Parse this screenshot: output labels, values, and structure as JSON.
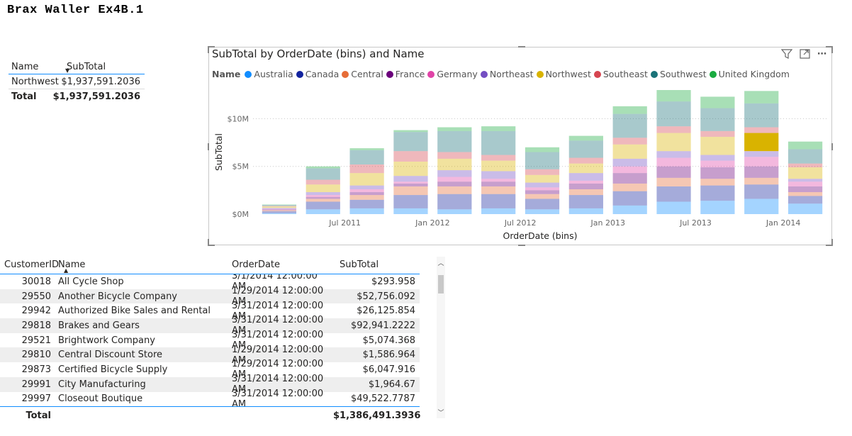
{
  "page": {
    "title": "Brax Waller Ex4B.1"
  },
  "small_table": {
    "headers": [
      "Name",
      "SubTotal"
    ],
    "rows": [
      {
        "name": "Northwest",
        "subtotal": "$1,937,591.2036"
      }
    ],
    "total": {
      "label": "Total",
      "value": "$1,937,591.2036"
    }
  },
  "chart": {
    "title": "SubTotal by OrderDate (bins) and Name",
    "legend_title": "Name",
    "icons": [
      "filter-icon",
      "focus-mode-icon",
      "more-options-icon"
    ]
  },
  "chart_data": {
    "type": "bar",
    "stacked": true,
    "title": "SubTotal by OrderDate (bins) and Name",
    "xlabel": "OrderDate (bins)",
    "ylabel": "SubTotal",
    "ylim": [
      0,
      13000000
    ],
    "yticks": [
      {
        "value": 0,
        "label": "$0M"
      },
      {
        "value": 5000000,
        "label": "$5M"
      },
      {
        "value": 10000000,
        "label": "$10M"
      }
    ],
    "x_tick_labels": [
      {
        "index": 1,
        "label": "Jul 2011"
      },
      {
        "index": 3,
        "label": "Jan 2012"
      },
      {
        "index": 5,
        "label": "Jul 2012"
      },
      {
        "index": 7,
        "label": "Jan 2013"
      },
      {
        "index": 9,
        "label": "Jul 2013"
      },
      {
        "index": 11,
        "label": "Jan 2014"
      }
    ],
    "highlighted_series": "Northwest",
    "series": [
      {
        "name": "Australia",
        "color": "#118dff",
        "values": [
          0.1,
          0.5,
          0.6,
          0.6,
          0.5,
          0.6,
          0.5,
          0.6,
          0.9,
          1.3,
          1.4,
          1.6,
          1.1
        ]
      },
      {
        "name": "Canada",
        "color": "#12239e",
        "values": [
          0.2,
          0.8,
          0.9,
          1.4,
          1.6,
          1.5,
          1.1,
          1.4,
          1.5,
          1.6,
          1.6,
          1.5,
          0.8
        ]
      },
      {
        "name": "Central",
        "color": "#e66c37",
        "values": [
          0.1,
          0.3,
          0.5,
          0.9,
          0.8,
          0.8,
          0.5,
          0.6,
          0.8,
          0.9,
          0.7,
          0.7,
          0.4
        ]
      },
      {
        "name": "France",
        "color": "#6b007b",
        "values": [
          0.1,
          0.2,
          0.3,
          0.3,
          0.5,
          0.5,
          0.4,
          0.6,
          1.1,
          1.2,
          1.2,
          1.2,
          0.6
        ]
      },
      {
        "name": "Germany",
        "color": "#e044a7",
        "values": [
          0.05,
          0.2,
          0.3,
          0.2,
          0.5,
          0.3,
          0.3,
          0.3,
          0.7,
          0.9,
          0.7,
          1.0,
          0.5
        ]
      },
      {
        "name": "Northeast",
        "color": "#744ec2",
        "values": [
          0.1,
          0.3,
          0.4,
          0.6,
          0.7,
          0.8,
          0.5,
          0.8,
          0.8,
          0.7,
          0.6,
          0.6,
          0.3
        ]
      },
      {
        "name": "Northwest",
        "color": "#d9b300",
        "values": [
          0.15,
          0.8,
          1.3,
          1.5,
          1.2,
          1.1,
          0.8,
          1.0,
          1.5,
          1.9,
          1.9,
          1.9,
          1.2
        ]
      },
      {
        "name": "Southeast",
        "color": "#d64550",
        "values": [
          0.05,
          0.5,
          0.9,
          1.1,
          0.7,
          0.6,
          0.6,
          0.6,
          0.7,
          0.7,
          0.6,
          0.6,
          0.4
        ]
      },
      {
        "name": "Southwest",
        "color": "#197278",
        "values": [
          0.1,
          1.2,
          1.5,
          2.0,
          2.2,
          2.5,
          1.8,
          1.8,
          2.5,
          2.6,
          2.4,
          2.5,
          1.5
        ]
      },
      {
        "name": "United Kingdom",
        "color": "#1aab40",
        "values": [
          0.05,
          0.2,
          0.2,
          0.2,
          0.4,
          0.5,
          0.5,
          0.5,
          0.8,
          1.2,
          1.2,
          1.3,
          0.8
        ]
      }
    ]
  },
  "table": {
    "headers": [
      "CustomerID",
      "Name",
      "OrderDate",
      "SubTotal"
    ],
    "rows": [
      {
        "id": "30018",
        "name": "All Cycle Shop",
        "date": "3/1/2014 12:00:00 AM",
        "subtotal": "$293.958"
      },
      {
        "id": "29550",
        "name": "Another Bicycle Company",
        "date": "1/29/2014 12:00:00 AM",
        "subtotal": "$52,756.092"
      },
      {
        "id": "29942",
        "name": "Authorized Bike Sales and Rental",
        "date": "3/31/2014 12:00:00 AM",
        "subtotal": "$26,125.854"
      },
      {
        "id": "29818",
        "name": "Brakes and Gears",
        "date": "3/31/2014 12:00:00 AM",
        "subtotal": "$92,941.2222"
      },
      {
        "id": "29521",
        "name": "Brightwork Company",
        "date": "3/31/2014 12:00:00 AM",
        "subtotal": "$5,074.368"
      },
      {
        "id": "29810",
        "name": "Central Discount Store",
        "date": "1/29/2014 12:00:00 AM",
        "subtotal": "$1,586.964"
      },
      {
        "id": "29873",
        "name": "Certified Bicycle Supply",
        "date": "1/29/2014 12:00:00 AM",
        "subtotal": "$6,047.916"
      },
      {
        "id": "29991",
        "name": "City Manufacturing",
        "date": "3/31/2014 12:00:00 AM",
        "subtotal": "$1,964.67"
      },
      {
        "id": "29997",
        "name": "Closeout Boutique",
        "date": "3/31/2014 12:00:00 AM",
        "subtotal": "$49,522.7787"
      }
    ],
    "total": {
      "label": "Total",
      "value": "$1,386,491.3936"
    }
  }
}
